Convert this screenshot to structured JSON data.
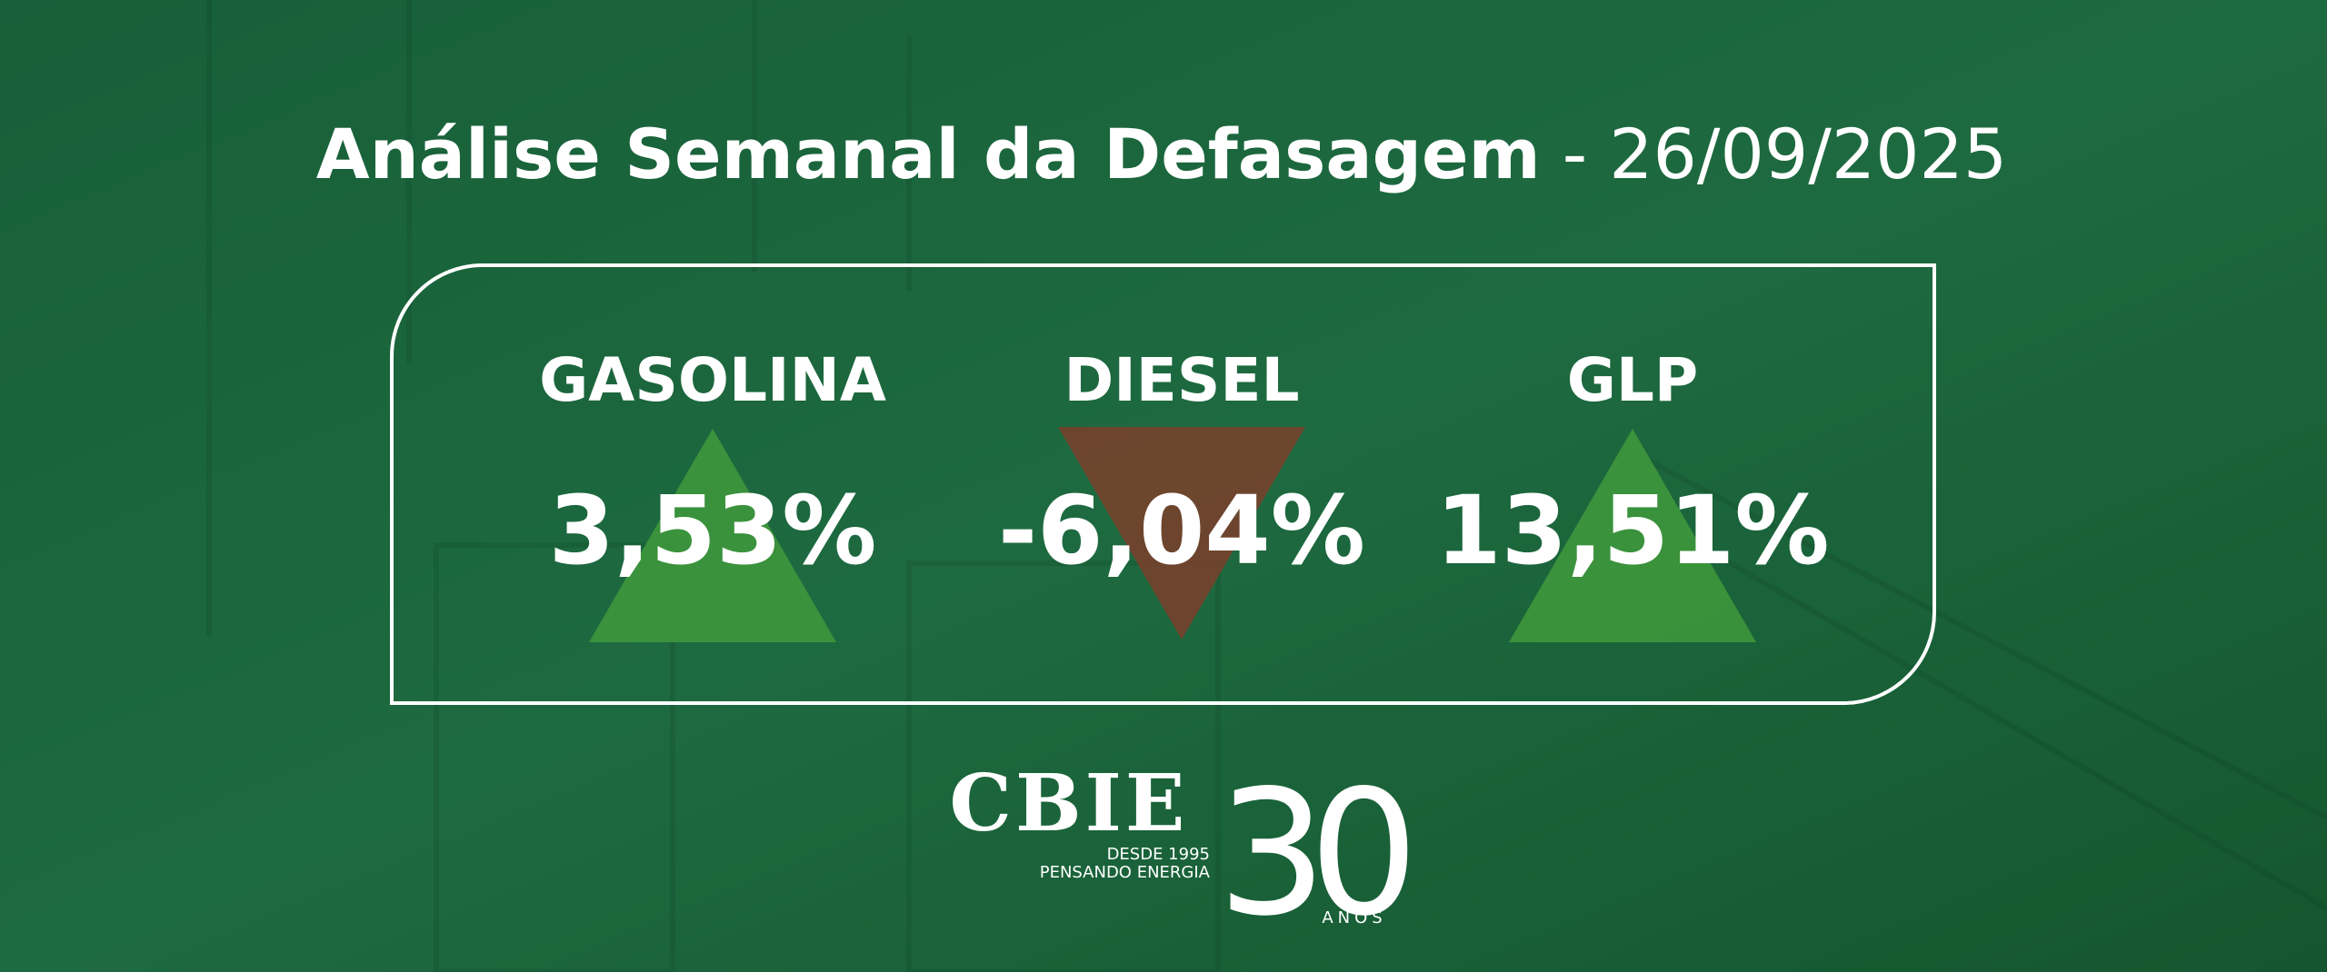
{
  "header": {
    "title": "Análise Semanal da Defasagem",
    "separator": "-",
    "date": "26/09/2025"
  },
  "items": [
    {
      "label": "GASOLINA",
      "value": "3,53%",
      "direction": "up",
      "color": "#3f9a3c"
    },
    {
      "label": "DIESEL",
      "value": "-6,04%",
      "direction": "down",
      "color": "#7b3f2c"
    },
    {
      "label": "GLP",
      "value": "13,51%",
      "direction": "up",
      "color": "#3f9a3c"
    }
  ],
  "logo": {
    "name": "CBIE",
    "since": "DESDE 1995",
    "tagline": "PENSANDO ENERGIA",
    "years": "30",
    "years_label": "ANOS"
  }
}
